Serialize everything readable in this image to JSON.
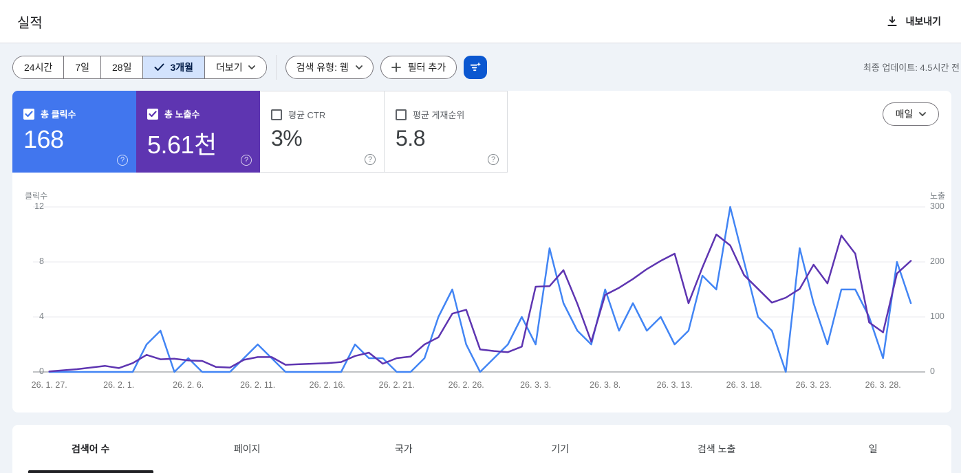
{
  "header": {
    "title": "실적",
    "export_label": "내보내기"
  },
  "toolbar": {
    "date_ranges": [
      {
        "label": "24시간",
        "selected": false,
        "caret": false
      },
      {
        "label": "7일",
        "selected": false,
        "caret": false
      },
      {
        "label": "28일",
        "selected": false,
        "caret": false
      },
      {
        "label": "3개월",
        "selected": true,
        "caret": false
      },
      {
        "label": "더보기",
        "selected": false,
        "caret": true
      }
    ],
    "search_type_label": "검색 유형: 웹",
    "add_filter_label": "필터 추가",
    "last_updated": "최종 업데이트: 4.5시간 전"
  },
  "metrics": {
    "granularity_label": "매일",
    "cards": [
      {
        "label": "총 클릭수",
        "value": "168",
        "checked": true,
        "bg": "#4176ee"
      },
      {
        "label": "총 노출수",
        "value": "5.61천",
        "checked": true,
        "bg": "#5e35b1"
      },
      {
        "label": "평균 CTR",
        "value": "3%",
        "checked": false,
        "bg": "#ffffff"
      },
      {
        "label": "평균 게재순위",
        "value": "5.8",
        "checked": false,
        "bg": "#ffffff"
      }
    ]
  },
  "chart_data": {
    "type": "line",
    "grid": true,
    "left_axis": {
      "label": "클릭수",
      "ticks": [
        12,
        8,
        4,
        0
      ],
      "max": 12
    },
    "right_axis": {
      "label": "노출",
      "ticks": [
        300,
        200,
        100,
        0
      ],
      "max": 300
    },
    "x_tick_labels": [
      "26. 1. 27.",
      "26. 2. 1.",
      "26. 2. 6.",
      "26. 2. 11.",
      "26. 2. 16.",
      "26. 2. 21.",
      "26. 2. 26.",
      "26. 3. 3.",
      "26. 3. 8.",
      "26. 3. 13.",
      "26. 3. 18.",
      "26. 3. 23.",
      "26. 3. 28."
    ],
    "x_tick_every": 5,
    "series": [
      {
        "name": "클릭수",
        "axis": "left",
        "color": "#4285f4",
        "values": [
          0,
          0,
          0,
          0,
          0,
          0,
          0,
          2,
          3,
          0,
          1,
          0,
          0,
          0,
          1,
          2,
          1,
          0,
          0,
          0,
          0,
          0,
          2,
          1,
          1,
          0,
          0,
          1,
          4,
          6,
          2,
          0,
          1,
          2,
          4,
          2,
          9,
          5,
          3,
          2,
          6,
          3,
          5,
          3,
          4,
          2,
          3,
          7,
          6,
          12,
          8,
          4,
          3,
          0,
          9,
          5,
          2,
          6,
          6,
          4,
          1,
          8,
          5
        ]
      },
      {
        "name": "노출수",
        "axis": "right",
        "color": "#5e35b1",
        "values": [
          1,
          3,
          5,
          8,
          11,
          7,
          16,
          31,
          23,
          24,
          21,
          20,
          9,
          8,
          22,
          27,
          27,
          13,
          14,
          15,
          16,
          18,
          29,
          35,
          15,
          25,
          28,
          50,
          63,
          106,
          113,
          41,
          38,
          36,
          46,
          155,
          156,
          185,
          124,
          55,
          140,
          153,
          169,
          187,
          202,
          215,
          125,
          190,
          250,
          230,
          176,
          151,
          126,
          135,
          151,
          195,
          161,
          248,
          215,
          90,
          72,
          179,
          202
        ]
      }
    ]
  },
  "tabs": {
    "items": [
      "검색어 수",
      "페이지",
      "국가",
      "기기",
      "검색 노출",
      "일"
    ],
    "active_index": 0
  },
  "colors": {
    "clicks": "#4176ee",
    "impressions": "#5e35b1",
    "clicks_line": "#4285f4",
    "selected_chip_bg": "#d3e3fd",
    "filter_button": "#0b57d0",
    "grid": "#e8eaed",
    "axis_zero": "#80868b",
    "page_bg": "#eff3f8"
  }
}
